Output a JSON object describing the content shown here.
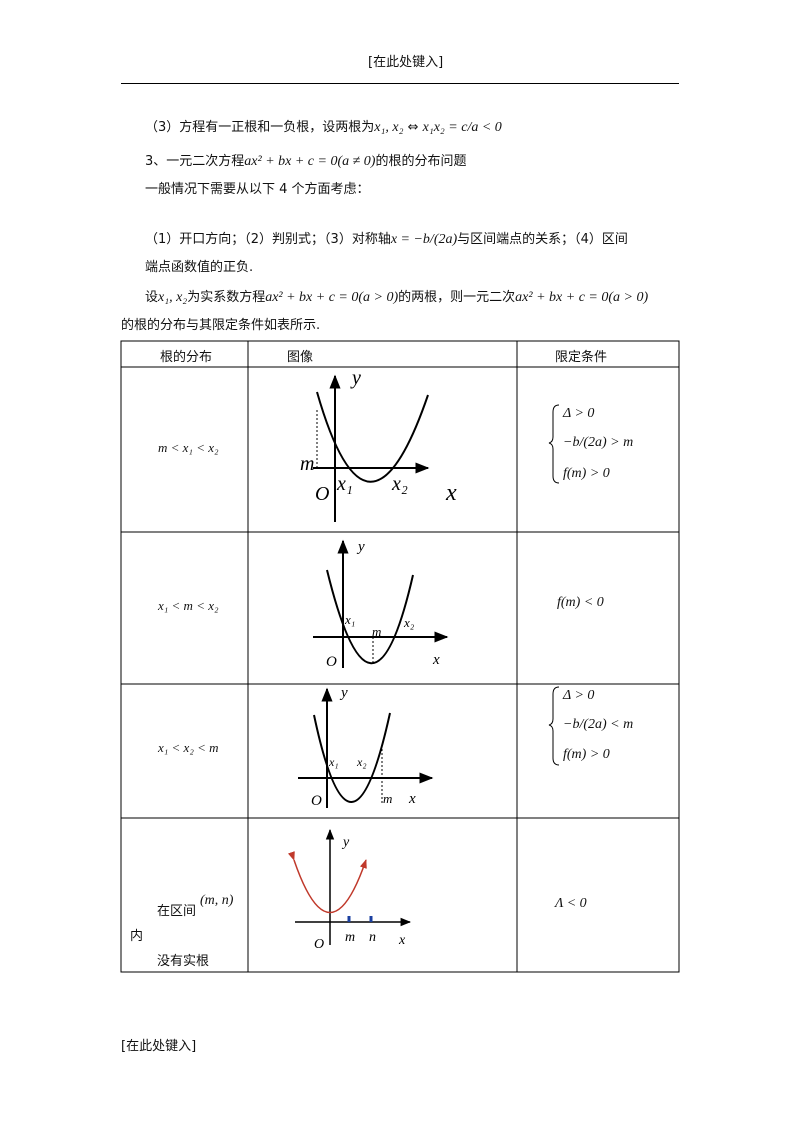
{
  "header": "[在此处键入]",
  "paragraphs": [
    [
      "（3）方程有一正根和一负根，设两根为",
      "x₁, x₂",
      " ⇔ ",
      "x₁x₂ = c/a < 0"
    ],
    [
      "3、一元二次方程",
      "ax² + bx + c = 0(a ≠ 0)",
      "的根的分布问题"
    ],
    [
      "一般情况下需要从以下 4 个方面考虑："
    ],
    [
      "（1）开口方向；（2）判别式；（3）对称轴",
      "x = −b/(2a)",
      "与区间端点的关系；（4）区间"
    ],
    [
      "端点函数值的正负."
    ],
    [
      "设",
      "x₁, x₂",
      "为实系数方程",
      "ax² + bx + c = 0(a > 0)",
      "的两根，则一元二次",
      "ax² + bx + c = 0(a > 0)"
    ],
    [
      "的根的分布与其限定条件如表所示."
    ]
  ],
  "table": {
    "headers": [
      "根的分布",
      "图像",
      "限定条件"
    ],
    "rows": [
      {
        "distribution": [
          "m < x₁ < x₂"
        ],
        "graph_labels": [
          "y",
          "m",
          "O",
          "x₁",
          "x₂",
          "x"
        ],
        "conditions": [
          "Δ > 0",
          "−b/(2a) > m",
          "f(m) > 0"
        ]
      },
      {
        "distribution": [
          "x₁ < m < x₂"
        ],
        "graph_labels": [
          "y",
          "x₁",
          "m",
          "x₂",
          "O",
          "x"
        ],
        "conditions": [
          "f(m) < 0"
        ]
      },
      {
        "distribution": [
          "x₁ < x₂ < m"
        ],
        "graph_labels": [
          "y",
          "x₁",
          "x₂",
          "O",
          "m",
          "x"
        ],
        "conditions": [
          "Δ > 0",
          "−b/(2a) < m",
          "f(m) > 0"
        ]
      },
      {
        "distribution": [
          "在区间",
          "(m, n)",
          "内",
          "没有实根"
        ],
        "graph_labels": [
          "y",
          "m",
          "n",
          "O",
          "x"
        ],
        "conditions": [
          "Λ < 0"
        ]
      }
    ]
  },
  "footer": "[在此处键入]"
}
